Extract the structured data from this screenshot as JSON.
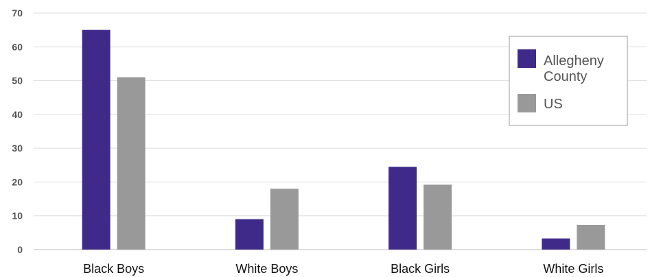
{
  "chart_data": {
    "type": "bar",
    "categories": [
      "Black Boys",
      "White Boys",
      "Black Girls",
      "White Girls"
    ],
    "series": [
      {
        "name": "Allegheny County",
        "color": "#3f2a8a",
        "values": [
          65,
          9,
          24.5,
          3.3
        ]
      },
      {
        "name": "US",
        "color": "#999999",
        "values": [
          51,
          18,
          19.2,
          7.3
        ]
      }
    ],
    "ylim": [
      0,
      70
    ],
    "yticks": [
      0,
      10,
      20,
      30,
      40,
      50,
      60,
      70
    ],
    "grid": true,
    "legend": "top-right",
    "title": "",
    "xlabel": "",
    "ylabel": ""
  }
}
